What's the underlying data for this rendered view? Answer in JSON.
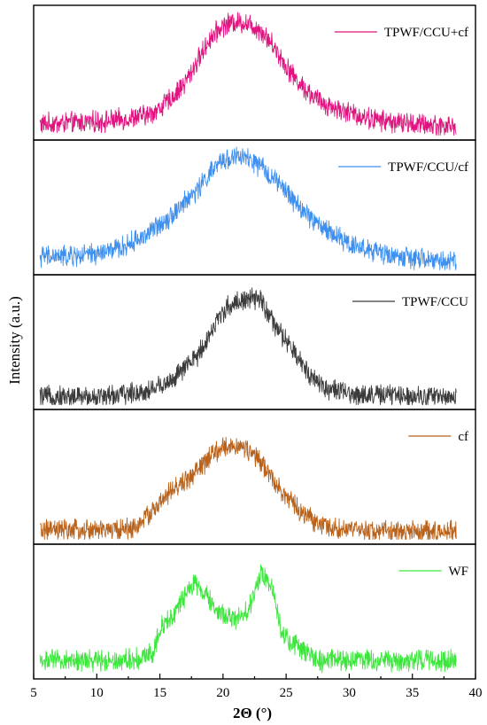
{
  "chart_data": {
    "type": "line",
    "layout": "stacked-panels",
    "xlabel": "2Θ (°)",
    "ylabel": "Intensity (a.u.)",
    "xlim": [
      5,
      40
    ],
    "x_ticks": [
      5,
      10,
      15,
      20,
      25,
      30,
      35,
      40
    ],
    "x_tick_labels": [
      "5",
      "10",
      "15",
      "20",
      "25",
      "30",
      "35",
      "40"
    ],
    "y_ticks_shown": false,
    "grid": false,
    "legend_position": "top-right of each panel",
    "x_range_data": [
      5.5,
      38.5
    ],
    "series": [
      {
        "name": "TPWF/CCU+cf",
        "color": "#e0137f",
        "points": [
          [
            5.5,
            0.08
          ],
          [
            8,
            0.09
          ],
          [
            10,
            0.1
          ],
          [
            12,
            0.12
          ],
          [
            14,
            0.16
          ],
          [
            15,
            0.22
          ],
          [
            16,
            0.32
          ],
          [
            17,
            0.45
          ],
          [
            18,
            0.65
          ],
          [
            19,
            0.85
          ],
          [
            20,
            0.96
          ],
          [
            21,
            1.0
          ],
          [
            22,
            0.98
          ],
          [
            23,
            0.92
          ],
          [
            24,
            0.78
          ],
          [
            25,
            0.6
          ],
          [
            26,
            0.45
          ],
          [
            27,
            0.34
          ],
          [
            28,
            0.26
          ],
          [
            30,
            0.18
          ],
          [
            32,
            0.12
          ],
          [
            35,
            0.08
          ],
          [
            38.5,
            0.06
          ]
        ]
      },
      {
        "name": "TPWF/CCU/cf",
        "color": "#3d8ff0",
        "points": [
          [
            5.5,
            0.1
          ],
          [
            8,
            0.1
          ],
          [
            10,
            0.12
          ],
          [
            12,
            0.18
          ],
          [
            14,
            0.3
          ],
          [
            16,
            0.48
          ],
          [
            18,
            0.7
          ],
          [
            19,
            0.85
          ],
          [
            20,
            0.96
          ],
          [
            21,
            1.0
          ],
          [
            22,
            0.97
          ],
          [
            23,
            0.9
          ],
          [
            24,
            0.8
          ],
          [
            25,
            0.68
          ],
          [
            26,
            0.55
          ],
          [
            27,
            0.44
          ],
          [
            28,
            0.35
          ],
          [
            30,
            0.22
          ],
          [
            32,
            0.14
          ],
          [
            35,
            0.08
          ],
          [
            38.5,
            0.05
          ]
        ]
      },
      {
        "name": "TPWF/CCU",
        "color": "#3b3b3b",
        "points": [
          [
            5.5,
            0.05
          ],
          [
            10,
            0.05
          ],
          [
            12,
            0.07
          ],
          [
            14,
            0.1
          ],
          [
            16,
            0.2
          ],
          [
            18,
            0.42
          ],
          [
            19,
            0.62
          ],
          [
            20,
            0.82
          ],
          [
            21,
            0.9
          ],
          [
            22,
            0.92
          ],
          [
            23,
            0.92
          ],
          [
            24,
            0.7
          ],
          [
            25,
            0.55
          ],
          [
            26,
            0.38
          ],
          [
            27,
            0.24
          ],
          [
            28,
            0.14
          ],
          [
            30,
            0.07
          ],
          [
            35,
            0.06
          ],
          [
            38.5,
            0.05
          ]
        ]
      },
      {
        "name": "cf",
        "color": "#b8621b",
        "points": [
          [
            5.5,
            0.06
          ],
          [
            10,
            0.06
          ],
          [
            13,
            0.08
          ],
          [
            15,
            0.3
          ],
          [
            16,
            0.42
          ],
          [
            17,
            0.5
          ],
          [
            18,
            0.6
          ],
          [
            19,
            0.72
          ],
          [
            20,
            0.8
          ],
          [
            21,
            0.82
          ],
          [
            22,
            0.78
          ],
          [
            23,
            0.66
          ],
          [
            24,
            0.52
          ],
          [
            25,
            0.36
          ],
          [
            26,
            0.24
          ],
          [
            27,
            0.16
          ],
          [
            28,
            0.1
          ],
          [
            30,
            0.06
          ],
          [
            35,
            0.05
          ],
          [
            38.5,
            0.05
          ]
        ]
      },
      {
        "name": "WF",
        "color": "#3ce63c",
        "points": [
          [
            5.5,
            0.1
          ],
          [
            10,
            0.1
          ],
          [
            13.5,
            0.12
          ],
          [
            14.5,
            0.18
          ],
          [
            15,
            0.4
          ],
          [
            16,
            0.5
          ],
          [
            17,
            0.68
          ],
          [
            17.8,
            0.8
          ],
          [
            18.5,
            0.7
          ],
          [
            19.5,
            0.55
          ],
          [
            20,
            0.52
          ],
          [
            21,
            0.46
          ],
          [
            22,
            0.55
          ],
          [
            23,
            0.88
          ],
          [
            23.5,
            0.85
          ],
          [
            24,
            0.7
          ],
          [
            24.5,
            0.42
          ],
          [
            25,
            0.3
          ],
          [
            26,
            0.22
          ],
          [
            27,
            0.14
          ],
          [
            27.5,
            0.08
          ],
          [
            28,
            0.1
          ],
          [
            30,
            0.11
          ],
          [
            35,
            0.1
          ],
          [
            38.5,
            0.1
          ]
        ]
      }
    ]
  }
}
